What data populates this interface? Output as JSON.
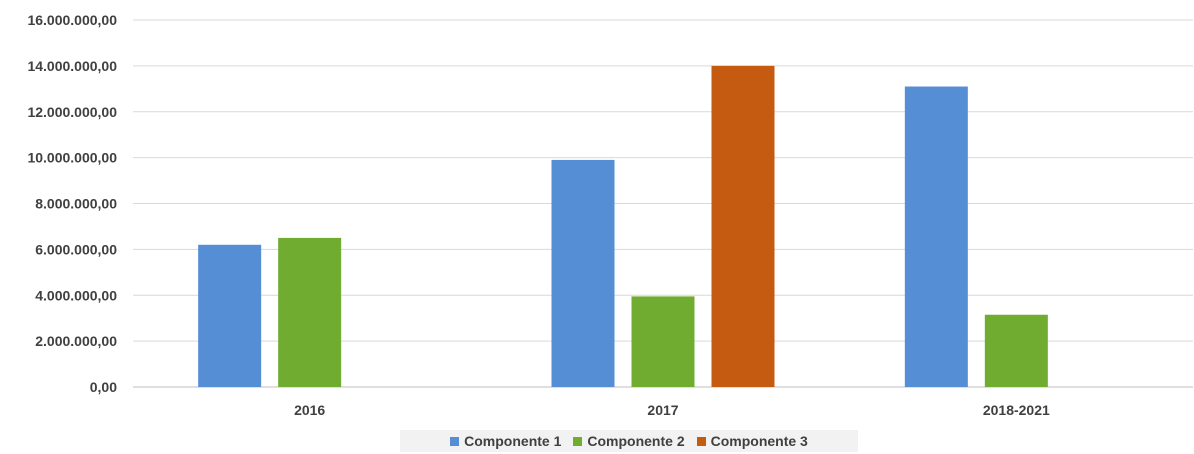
{
  "chart_data": {
    "type": "bar",
    "categories": [
      "2016",
      "2017",
      "2018-2021"
    ],
    "series": [
      {
        "name": "Componente 1",
        "color": "#558ed5",
        "values": [
          6200000,
          9900000,
          13100000
        ]
      },
      {
        "name": "Componente 2",
        "color": "#6fac30",
        "values": [
          6500000,
          3950000,
          3150000
        ]
      },
      {
        "name": "Componente 3",
        "color": "#c55a11",
        "values": [
          null,
          14000000,
          null
        ]
      }
    ],
    "ylim": [
      0,
      16000000
    ],
    "yticks": [
      0,
      2000000,
      4000000,
      6000000,
      8000000,
      10000000,
      12000000,
      14000000,
      16000000
    ],
    "ytick_labels": [
      "0,00",
      "2.000.000,00",
      "4.000.000,00",
      "6.000.000,00",
      "8.000.000,00",
      "10.000.000,00",
      "12.000.000,00",
      "14.000.000,00",
      "16.000.000,00"
    ],
    "grid": true,
    "legend_position": "bottom",
    "title": "",
    "xlabel": "",
    "ylabel": ""
  }
}
